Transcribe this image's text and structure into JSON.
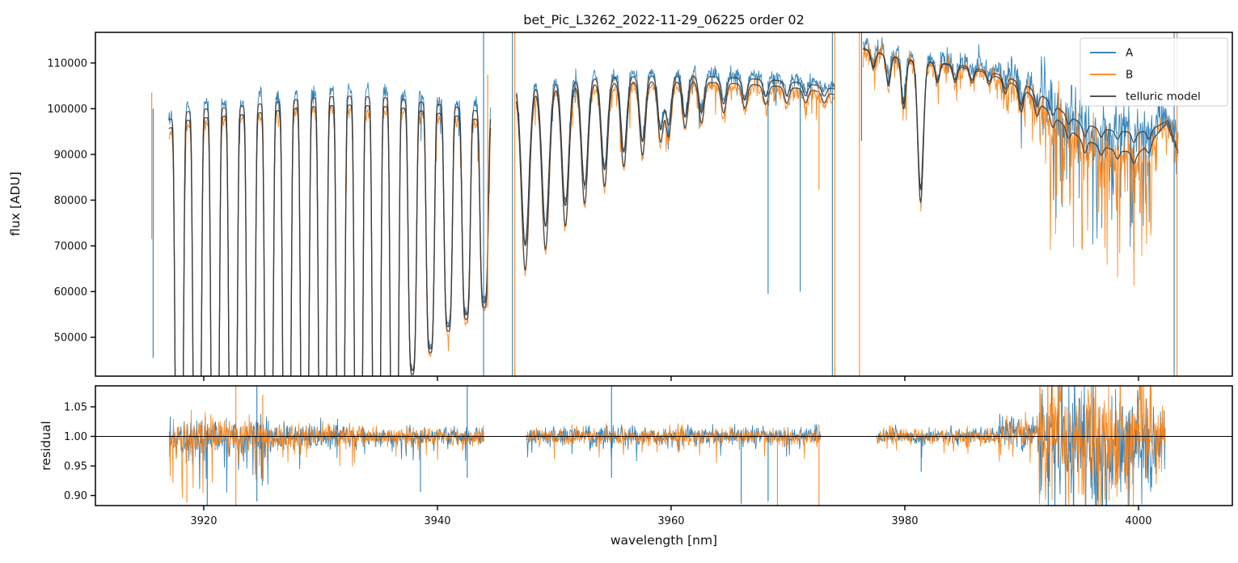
{
  "chart_data": {
    "type": "line",
    "title": "bet_Pic_L3262_2022-11-29_06225  order 02",
    "xlabel": "wavelength [nm]",
    "grid": false,
    "legend_position": "upper right",
    "x_ticks": [
      3920,
      3940,
      3960,
      3980,
      4000
    ],
    "xlim": [
      3910.73,
      4008.03
    ],
    "panels": {
      "flux": {
        "ylabel": "flux [ADU]",
        "ylim": [
          41500,
          116700
        ],
        "y_ticks": [
          50000,
          60000,
          70000,
          80000,
          90000,
          100000,
          110000
        ]
      },
      "residual": {
        "ylabel": "residual",
        "ylim": [
          0.883,
          1.0855
        ],
        "y_ticks": [
          0.9,
          0.95,
          1.0,
          1.05
        ],
        "hline": 1.0
      }
    },
    "series": [
      {
        "name": "A",
        "color": "#1f77b4"
      },
      {
        "name": "B",
        "color": "#ff7f0e"
      },
      {
        "name": "telluric model",
        "color": "#3c3c3c"
      }
    ],
    "flux_segments": [
      {
        "range": [
          3917.0,
          3944.55
        ],
        "continuum": [
          [
            3917.0,
            97500
          ],
          [
            3918.5,
            99300
          ],
          [
            3920,
            99900
          ],
          [
            3923,
            100500
          ],
          [
            3926,
            101400
          ],
          [
            3929,
            102300
          ],
          [
            3932,
            102800
          ],
          [
            3935,
            102500
          ],
          [
            3937,
            102100
          ],
          [
            3939,
            101300
          ],
          [
            3941,
            100600
          ],
          [
            3943,
            99700
          ],
          [
            3944.55,
            99000
          ]
        ],
        "model_b_factor": 0.981,
        "a_offset": 1.011,
        "b_offset": 0.9885,
        "lines": {
          "mode": "comb",
          "start": 3917.9,
          "spacing": 1.535,
          "count": 18,
          "sigma": 0.4,
          "power": 4,
          "widen": 0,
          "b_extra": 1.0,
          "depths": [
            1.03,
            1.03,
            1.03,
            1.03,
            1.03,
            1.03,
            1.03,
            1.03,
            1.03,
            1.03,
            1.03,
            1.03,
            1.03,
            0.58,
            0.53,
            0.48,
            0.45,
            0.42
          ]
        },
        "noise": [
          {
            "to": 3944.55,
            "sigma": 900,
            "tail_p": 0.05,
            "tail_mag": 9000
          }
        ]
      },
      {
        "range": [
          3946.75,
          3974.05
        ],
        "continuum": [
          [
            3946.75,
            105000
          ],
          [
            3950,
            106300
          ],
          [
            3954,
            106900
          ],
          [
            3958,
            107300
          ],
          [
            3962,
            107200
          ],
          [
            3966,
            106700
          ],
          [
            3969,
            106200
          ],
          [
            3971,
            105700
          ],
          [
            3973,
            104900
          ],
          [
            3974.05,
            104300
          ]
        ],
        "model_b_factor": 0.988,
        "a_offset": 1.007,
        "b_offset": 0.992,
        "lines": {
          "mode": "list",
          "sigma": 0.27,
          "power": 2,
          "widen": 2.0,
          "b_extra": 1.13,
          "centers": [
            3947.52,
            3949.25,
            3950.95,
            3952.6,
            3954.3,
            3955.95,
            3957.55,
            3959.1,
            3959.78,
            3961.2,
            3962.6,
            3964.5,
            3966.3,
            3968.1,
            3969.9,
            3971.5,
            3973.1
          ],
          "depths": [
            0.335,
            0.3,
            0.26,
            0.22,
            0.19,
            0.155,
            0.135,
            0.11,
            0.1,
            0.085,
            0.075,
            0.055,
            0.045,
            0.035,
            0.03,
            0.025,
            0.02
          ]
        },
        "noise": [
          {
            "to": 3974.05,
            "sigma": 800,
            "tail_p": 0.04,
            "tail_mag": 6000
          }
        ]
      },
      {
        "range": [
          3976.43,
          4003.42
        ],
        "continuum": [
          [
            3976.43,
            113200
          ],
          [
            3977.5,
            112400
          ],
          [
            3979,
            111400
          ],
          [
            3981,
            110600
          ],
          [
            3983,
            110000
          ],
          [
            3985,
            109400
          ],
          [
            3987,
            108300
          ],
          [
            3989,
            106700
          ],
          [
            3990.5,
            104900
          ],
          [
            3992,
            102400
          ],
          [
            3993.5,
            99400
          ],
          [
            3995,
            96900
          ],
          [
            3996.5,
            95800
          ],
          [
            3998,
            95100
          ],
          [
            4000,
            94800
          ],
          [
            4001.0,
            95300
          ],
          [
            4002.5,
            97400
          ],
          [
            4003.42,
            90500
          ]
        ],
        "continuum_b": [
          [
            3976.43,
            113000
          ],
          [
            3980,
            110900
          ],
          [
            3984,
            109500
          ],
          [
            3987,
            107900
          ],
          [
            3989,
            105800
          ],
          [
            3990.5,
            103600
          ],
          [
            3992,
            100100
          ],
          [
            3993.5,
            96700
          ],
          [
            3995,
            93600
          ],
          [
            3996.5,
            92100
          ],
          [
            3998,
            90900
          ],
          [
            4000,
            90300
          ],
          [
            4001.0,
            92600
          ],
          [
            4002.4,
            96900
          ],
          [
            4003.42,
            90000
          ]
        ],
        "a_offset": 1.008,
        "b_offset": 0.998,
        "lines": {
          "mode": "list",
          "sigma": 0.24,
          "power": 2,
          "widen": 1.5,
          "b_extra": 1.1,
          "centers": [
            3977.3,
            3978.6,
            3979.9,
            3981.35,
            3982.8,
            3984.3,
            3985.75,
            3987.2,
            3988.6,
            3989.95,
            3991.3,
            3992.65,
            3994.0,
            3995.4,
            3996.8,
            3998.2,
            3999.6,
            4000.9
          ],
          "depths": [
            0.03,
            0.055,
            0.09,
            0.255,
            0.035,
            0.03,
            0.025,
            0.02,
            0.025,
            0.045,
            0.03,
            0.025,
            0.02,
            0.028,
            0.02,
            0.018,
            0.024,
            0.02
          ]
        },
        "noise": [
          {
            "to": 3988,
            "sigma": 1200,
            "tail_p": 0.04,
            "tail_mag": 5000
          },
          {
            "to": 3991.5,
            "sigma": 1900,
            "tail_p": 0.09,
            "tail_mag": 9000
          },
          {
            "to": 4001.2,
            "sigma": 3200,
            "tail_p": 0.22,
            "tail_mag": 26000
          },
          {
            "to": 4003.42,
            "sigma": 2000,
            "tail_p": 0.1,
            "tail_mag": 9000
          }
        ]
      }
    ],
    "flux_spikes": [
      {
        "x": 3915.55,
        "series": 1,
        "from": 103500,
        "to": 71500
      },
      {
        "x": 3915.67,
        "series": 0,
        "from": 100000,
        "to": 45500
      },
      {
        "x": 3943.95,
        "series": 0,
        "from": 116700,
        "to": 41500
      },
      {
        "x": 3944.3,
        "series": 1,
        "from": 107500,
        "to": 56500
      },
      {
        "x": 3946.42,
        "series": 0,
        "from": 116700,
        "to": 41500
      },
      {
        "x": 3946.62,
        "series": 1,
        "from": 116700,
        "to": 41500
      },
      {
        "x": 3968.3,
        "series": 0,
        "from": 106000,
        "to": 59500
      },
      {
        "x": 3971.05,
        "series": 0,
        "from": 105800,
        "to": 60000
      },
      {
        "x": 3972.66,
        "series": 1,
        "from": 105500,
        "to": 82300
      },
      {
        "x": 3973.8,
        "series": 0,
        "from": 116700,
        "to": 41500
      },
      {
        "x": 3974.0,
        "series": 1,
        "from": 116700,
        "to": 41500
      },
      {
        "x": 3976.12,
        "series": 1,
        "from": 116700,
        "to": 41500
      },
      {
        "x": 3976.3,
        "series": 0,
        "from": 116700,
        "to": 93000
      },
      {
        "x": 4003.05,
        "series": 0,
        "from": 116700,
        "to": 41500
      },
      {
        "x": 4003.3,
        "series": 1,
        "from": 116700,
        "to": 41500
      }
    ],
    "residual_segments": [
      {
        "range": [
          3917.05,
          3944.0
        ],
        "noise": [
          {
            "to": 3925.5,
            "sigma": 0.016,
            "tail_p": 0.1,
            "tail_mag": 0.085,
            "bias": 0
          },
          {
            "to": 3933.0,
            "sigma": 0.011,
            "tail_p": 0.06,
            "tail_mag": 0.05,
            "bias": 0
          },
          {
            "to": 3944.0,
            "sigma": 0.008,
            "tail_p": 0.05,
            "tail_mag": 0.04,
            "bias": 0
          }
        ]
      },
      {
        "range": [
          3947.6,
          3972.8
        ],
        "noise": [
          {
            "to": 3972.8,
            "sigma": 0.0075,
            "tail_p": 0.05,
            "tail_mag": 0.035,
            "bias": 0
          }
        ]
      },
      {
        "range": [
          3977.6,
          4002.3
        ],
        "noise": [
          {
            "to": 3988.0,
            "sigma": 0.007,
            "tail_p": 0.04,
            "tail_mag": 0.03,
            "bias": 0
          },
          {
            "to": 3991.5,
            "sigma": 0.014,
            "tail_p": 0.06,
            "tail_mag": 0.045,
            "bias": 0.008
          },
          {
            "to": 4001.3,
            "sigma": 0.05,
            "tail_p": 0.3,
            "tail_mag": 0.09,
            "bias": 0.002
          },
          {
            "to": 4002.3,
            "sigma": 0.025,
            "tail_p": 0.12,
            "tail_mag": 0.05,
            "bias": 0
          }
        ]
      }
    ],
    "residual_spikes": [
      {
        "x": 3918.55,
        "series": 1,
        "from": 1.005,
        "to": 0.888
      },
      {
        "x": 3920.3,
        "series": 0,
        "from": 1.01,
        "to": 0.883
      },
      {
        "x": 3922.75,
        "series": 1,
        "from": 1.0855,
        "to": 0.883
      },
      {
        "x": 3924.55,
        "series": 0,
        "from": 1.0855,
        "to": 0.89
      },
      {
        "x": 3925.05,
        "series": 1,
        "from": 1.07,
        "to": 0.93
      },
      {
        "x": 3938.55,
        "series": 0,
        "from": 1.005,
        "to": 0.906
      },
      {
        "x": 3942.55,
        "series": 0,
        "from": 1.0855,
        "to": 0.93
      },
      {
        "x": 3954.9,
        "series": 0,
        "from": 1.0855,
        "to": 0.93
      },
      {
        "x": 3966.0,
        "series": 0,
        "from": 1.005,
        "to": 0.886
      },
      {
        "x": 3968.3,
        "series": 0,
        "from": 1.0,
        "to": 0.89
      },
      {
        "x": 3969.1,
        "series": 1,
        "from": 1.005,
        "to": 0.883
      },
      {
        "x": 3972.66,
        "series": 1,
        "from": 1.02,
        "to": 0.883
      },
      {
        "x": 3981.4,
        "series": 0,
        "from": 1.0,
        "to": 0.94
      }
    ]
  }
}
